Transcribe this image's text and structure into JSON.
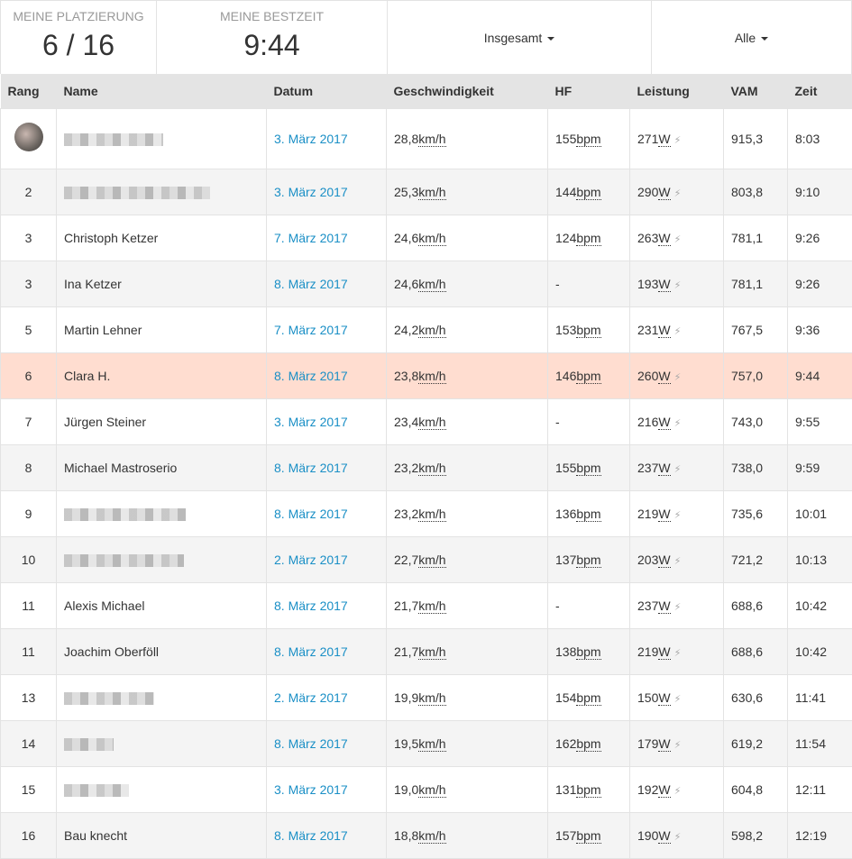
{
  "stats": {
    "placement_label": "Meine Platzierung",
    "placement_value": "6 / 16",
    "best_label": "Meine Bestzeit",
    "best_value": "9:44",
    "filter1": "Insgesamt",
    "filter2": "Alle"
  },
  "columns": [
    "Rang",
    "Name",
    "Datum",
    "Geschwindigkeit",
    "HF",
    "Leistung",
    "VAM",
    "Zeit"
  ],
  "units": {
    "speed": "km/h",
    "hr": "bpm",
    "power": "W"
  },
  "colors": {
    "link": "#1a8fc6",
    "highlight": "#ffddd0"
  },
  "rows": [
    {
      "rank": "",
      "avatar": true,
      "name": "",
      "blurred": true,
      "blur_width": 110,
      "date": "3. März 2017",
      "speed": "28,8",
      "hr": "155",
      "power": "271",
      "vam": "915,3",
      "time": "8:03"
    },
    {
      "rank": "2",
      "name": "",
      "blurred": true,
      "blur_width": 162,
      "date": "3. März 2017",
      "speed": "25,3",
      "hr": "144",
      "power": "290",
      "vam": "803,8",
      "time": "9:10"
    },
    {
      "rank": "3",
      "name": "Christoph Ketzer",
      "date": "7. März 2017",
      "speed": "24,6",
      "hr": "124",
      "power": "263",
      "vam": "781,1",
      "time": "9:26"
    },
    {
      "rank": "3",
      "name": "Ina Ketzer",
      "date": "8. März 2017",
      "speed": "24,6",
      "hr": "-",
      "power": "193",
      "vam": "781,1",
      "time": "9:26"
    },
    {
      "rank": "5",
      "name": "Martin Lehner",
      "date": "7. März 2017",
      "speed": "24,2",
      "hr": "153",
      "power": "231",
      "vam": "767,5",
      "time": "9:36"
    },
    {
      "rank": "6",
      "name": "Clara H.",
      "me": true,
      "date": "8. März 2017",
      "speed": "23,8",
      "hr": "146",
      "power": "260",
      "vam": "757,0",
      "time": "9:44"
    },
    {
      "rank": "7",
      "name": "Jürgen Steiner",
      "date": "3. März 2017",
      "speed": "23,4",
      "hr": "-",
      "power": "216",
      "vam": "743,0",
      "time": "9:55"
    },
    {
      "rank": "8",
      "name": "Michael Mastroserio",
      "date": "8. März 2017",
      "speed": "23,2",
      "hr": "155",
      "power": "237",
      "vam": "738,0",
      "time": "9:59"
    },
    {
      "rank": "9",
      "name": "",
      "blurred": true,
      "blur_width": 135,
      "date": "8. März 2017",
      "speed": "23,2",
      "hr": "136",
      "power": "219",
      "vam": "735,6",
      "time": "10:01"
    },
    {
      "rank": "10",
      "name": "",
      "blurred": true,
      "blur_width": 133,
      "date": "2. März 2017",
      "speed": "22,7",
      "hr": "137",
      "power": "203",
      "vam": "721,2",
      "time": "10:13"
    },
    {
      "rank": "11",
      "name": "Alexis Michael",
      "date": "8. März 2017",
      "speed": "21,7",
      "hr": "-",
      "power": "237",
      "vam": "688,6",
      "time": "10:42"
    },
    {
      "rank": "11",
      "name": "Joachim Oberföll",
      "date": "8. März 2017",
      "speed": "21,7",
      "hr": "138",
      "power": "219",
      "vam": "688,6",
      "time": "10:42"
    },
    {
      "rank": "13",
      "name": "",
      "blurred": true,
      "blur_width": 100,
      "date": "2. März 2017",
      "speed": "19,9",
      "hr": "154",
      "power": "150",
      "vam": "630,6",
      "time": "11:41"
    },
    {
      "rank": "14",
      "name": "",
      "blurred": true,
      "blur_width": 55,
      "date": "8. März 2017",
      "speed": "19,5",
      "hr": "162",
      "power": "179",
      "vam": "619,2",
      "time": "11:54"
    },
    {
      "rank": "15",
      "name": "",
      "blurred": true,
      "blur_width": 72,
      "date": "3. März 2017",
      "speed": "19,0",
      "hr": "131",
      "power": "192",
      "vam": "604,8",
      "time": "12:11"
    },
    {
      "rank": "16",
      "name": "Bau knecht",
      "date": "8. März 2017",
      "speed": "18,8",
      "hr": "157",
      "power": "190",
      "vam": "598,2",
      "time": "12:19"
    }
  ]
}
